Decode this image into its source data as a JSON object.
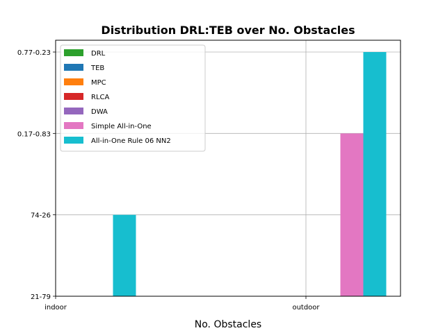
{
  "chart_data": {
    "type": "bar",
    "title": "Distribution DRL:TEB over No. Obstacles",
    "xlabel": "No. Obstacles",
    "ylabel": "",
    "categories": [
      "indoor",
      "outdoor"
    ],
    "y_ticks": [
      "21-79",
      "74-26",
      "0.17-0.83",
      "0.77-0.23"
    ],
    "ylim": [
      0,
      3
    ],
    "grid": true,
    "legend_position": "upper-left",
    "series": [
      {
        "name": "DRL",
        "color": "#2ca02c",
        "values": [
          0,
          0
        ]
      },
      {
        "name": "TEB",
        "color": "#1f77b4",
        "values": [
          0,
          0
        ]
      },
      {
        "name": "MPC",
        "color": "#ff7f0e",
        "values": [
          0,
          0
        ]
      },
      {
        "name": "RLCA",
        "color": "#d62728",
        "values": [
          0,
          0
        ]
      },
      {
        "name": "DWA",
        "color": "#9467bd",
        "values": [
          0,
          0
        ]
      },
      {
        "name": "Simple All-in-One",
        "color": "#e377c2",
        "values": [
          0,
          2
        ]
      },
      {
        "name": "All-in-One Rule 06 NN2",
        "color": "#17becf",
        "values": [
          1,
          3
        ]
      }
    ]
  }
}
